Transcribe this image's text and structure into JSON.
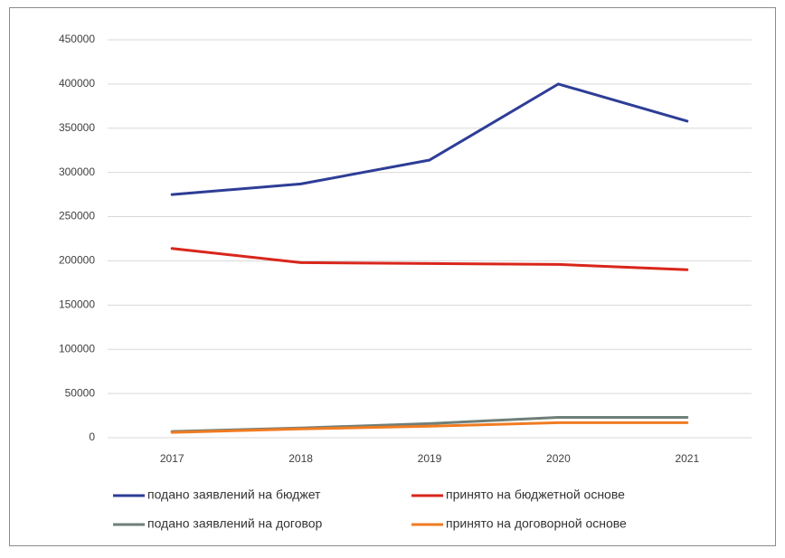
{
  "chart_data": {
    "type": "line",
    "categories": [
      "2017",
      "2018",
      "2019",
      "2020",
      "2021"
    ],
    "series": [
      {
        "name": "подано заявлений на бюджет",
        "color": "#2e3d96",
        "values": [
          275000,
          287000,
          314000,
          400000,
          358000
        ]
      },
      {
        "name": "принято на бюджетной основе",
        "color": "#d9261c",
        "values": [
          214000,
          198000,
          197000,
          196000,
          190000
        ]
      },
      {
        "name": "подано заявлений на договор",
        "color": "#6f7f78",
        "values": [
          7000,
          11000,
          16000,
          23000,
          23000
        ]
      },
      {
        "name": "принято на договорной основе",
        "color": "#f07c22",
        "values": [
          6000,
          10000,
          13000,
          17000,
          17000
        ]
      }
    ],
    "ylim": [
      0,
      450000
    ],
    "yticks": [
      0,
      50000,
      100000,
      150000,
      200000,
      250000,
      300000,
      350000,
      400000,
      450000
    ],
    "grid": true,
    "legend": "bottom"
  }
}
